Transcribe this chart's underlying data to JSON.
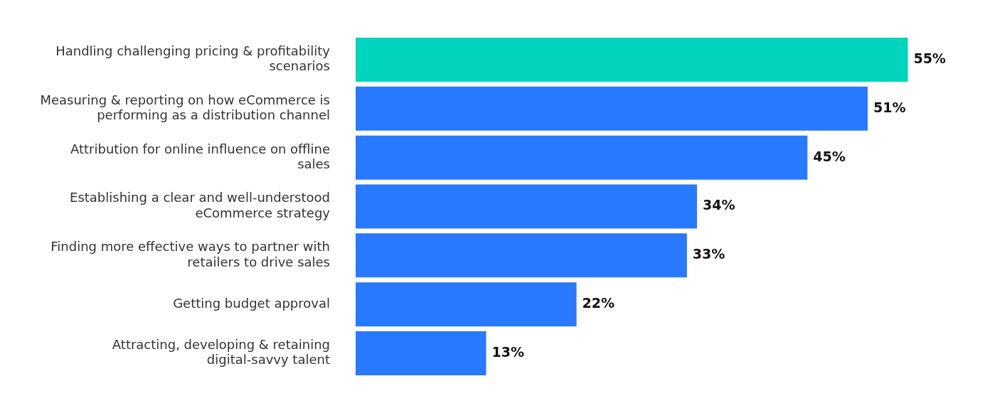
{
  "chart_data": {
    "type": "bar",
    "orientation": "horizontal",
    "categories": [
      "Handling challenging pricing & profitability scenarios",
      "Measuring & reporting on how eCommerce is performing as a distribution channel",
      "Attribution for online influence on offline sales",
      "Establishing a clear and well-understood eCommerce strategy",
      "Finding more effective ways to partner with retailers to drive sales",
      "Getting budget approval",
      "Attracting, developing & retaining digital-savvy talent"
    ],
    "values": [
      55,
      51,
      45,
      34,
      33,
      22,
      13
    ],
    "colors": [
      "#00d4bc",
      "#2979ff",
      "#2979ff",
      "#2979ff",
      "#2979ff",
      "#2979ff",
      "#2979ff"
    ],
    "value_labels": [
      "55%",
      "51%",
      "45%",
      "34%",
      "33%",
      "22%",
      "13%"
    ],
    "legend": false
  }
}
